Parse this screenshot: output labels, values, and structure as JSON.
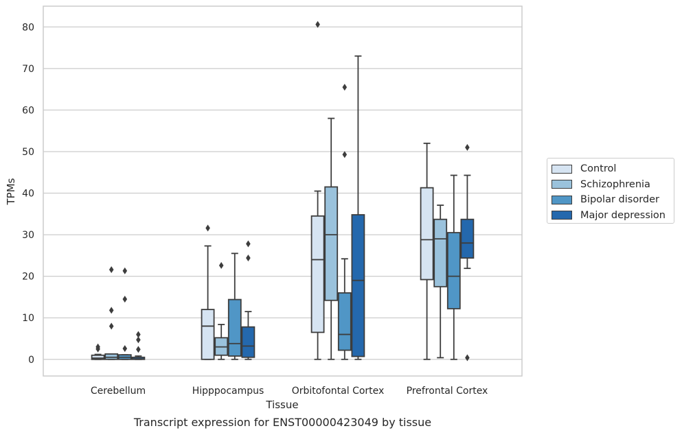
{
  "chart_data": {
    "type": "box",
    "caption": "Transcript expression for ENST00000423049 by tissue",
    "xlabel": "Tissue",
    "ylabel": "TPMs",
    "ylim": [
      -4,
      85
    ],
    "yticks": [
      0,
      10,
      20,
      30,
      40,
      50,
      60,
      70,
      80
    ],
    "grid": "horizontal",
    "legend_position": "right",
    "categories": [
      "Cerebellum",
      "Hipppocampus",
      "Orbitofontal Cortex",
      "Prefrontal Cortex"
    ],
    "series": [
      {
        "name": "Control",
        "color": "#d6e4f2",
        "boxes": [
          {
            "whislo": 0,
            "q1": 0,
            "med": 0.3,
            "q3": 1.0,
            "whishi": 1.2,
            "fliers": [
              2.5,
              3.0
            ]
          },
          {
            "whislo": 0,
            "q1": 0,
            "med": 8.0,
            "q3": 12.0,
            "whishi": 27.3,
            "fliers": [
              31.6
            ]
          },
          {
            "whislo": 0,
            "q1": 6.5,
            "med": 24.0,
            "q3": 34.5,
            "whishi": 40.5,
            "fliers": [
              80.6
            ]
          },
          {
            "whislo": 0,
            "q1": 19.2,
            "med": 28.8,
            "q3": 41.3,
            "whishi": 52.0,
            "fliers": []
          }
        ]
      },
      {
        "name": "Schizophrenia",
        "color": "#9ac2dc",
        "boxes": [
          {
            "whislo": 0,
            "q1": 0,
            "med": 0.5,
            "q3": 1.3,
            "whishi": 1.3,
            "fliers": [
              21.6,
              11.8,
              8.0
            ]
          },
          {
            "whislo": 0,
            "q1": 1.0,
            "med": 3.0,
            "q3": 5.2,
            "whishi": 8.4,
            "fliers": [
              22.6
            ]
          },
          {
            "whislo": 0,
            "q1": 14.2,
            "med": 30.0,
            "q3": 41.5,
            "whishi": 58.0,
            "fliers": []
          },
          {
            "whislo": 0.4,
            "q1": 17.5,
            "med": 29.0,
            "q3": 33.7,
            "whishi": 37.1,
            "fliers": []
          }
        ]
      },
      {
        "name": "Bipolar disorder",
        "color": "#5096c6",
        "boxes": [
          {
            "whislo": 0,
            "q1": 0,
            "med": 0.5,
            "q3": 1.1,
            "whishi": 1.1,
            "fliers": [
              21.3,
              14.5,
              2.6
            ]
          },
          {
            "whislo": 0,
            "q1": 0.8,
            "med": 3.8,
            "q3": 14.4,
            "whishi": 25.5,
            "fliers": []
          },
          {
            "whislo": 0,
            "q1": 2.2,
            "med": 6.0,
            "q3": 16.0,
            "whishi": 24.2,
            "fliers": [
              65.5,
              49.3
            ]
          },
          {
            "whislo": 0,
            "q1": 12.2,
            "med": 20.0,
            "q3": 30.5,
            "whishi": 44.3,
            "fliers": []
          }
        ]
      },
      {
        "name": "Major depression",
        "color": "#2468ad",
        "boxes": [
          {
            "whislo": 0,
            "q1": 0,
            "med": 0.1,
            "q3": 0.5,
            "whishi": 0.8,
            "fliers": [
              6.0,
              4.7,
              2.4
            ]
          },
          {
            "whislo": 0,
            "q1": 0.5,
            "med": 3.2,
            "q3": 7.8,
            "whishi": 11.5,
            "fliers": [
              27.8,
              24.4
            ]
          },
          {
            "whislo": 0,
            "q1": 0.7,
            "med": 19.0,
            "q3": 34.8,
            "whishi": 73.0,
            "fliers": []
          },
          {
            "whislo": 21.9,
            "q1": 24.4,
            "med": 28.0,
            "q3": 33.7,
            "whishi": 44.3,
            "fliers": [
              51.0,
              0.4
            ]
          }
        ]
      }
    ]
  }
}
